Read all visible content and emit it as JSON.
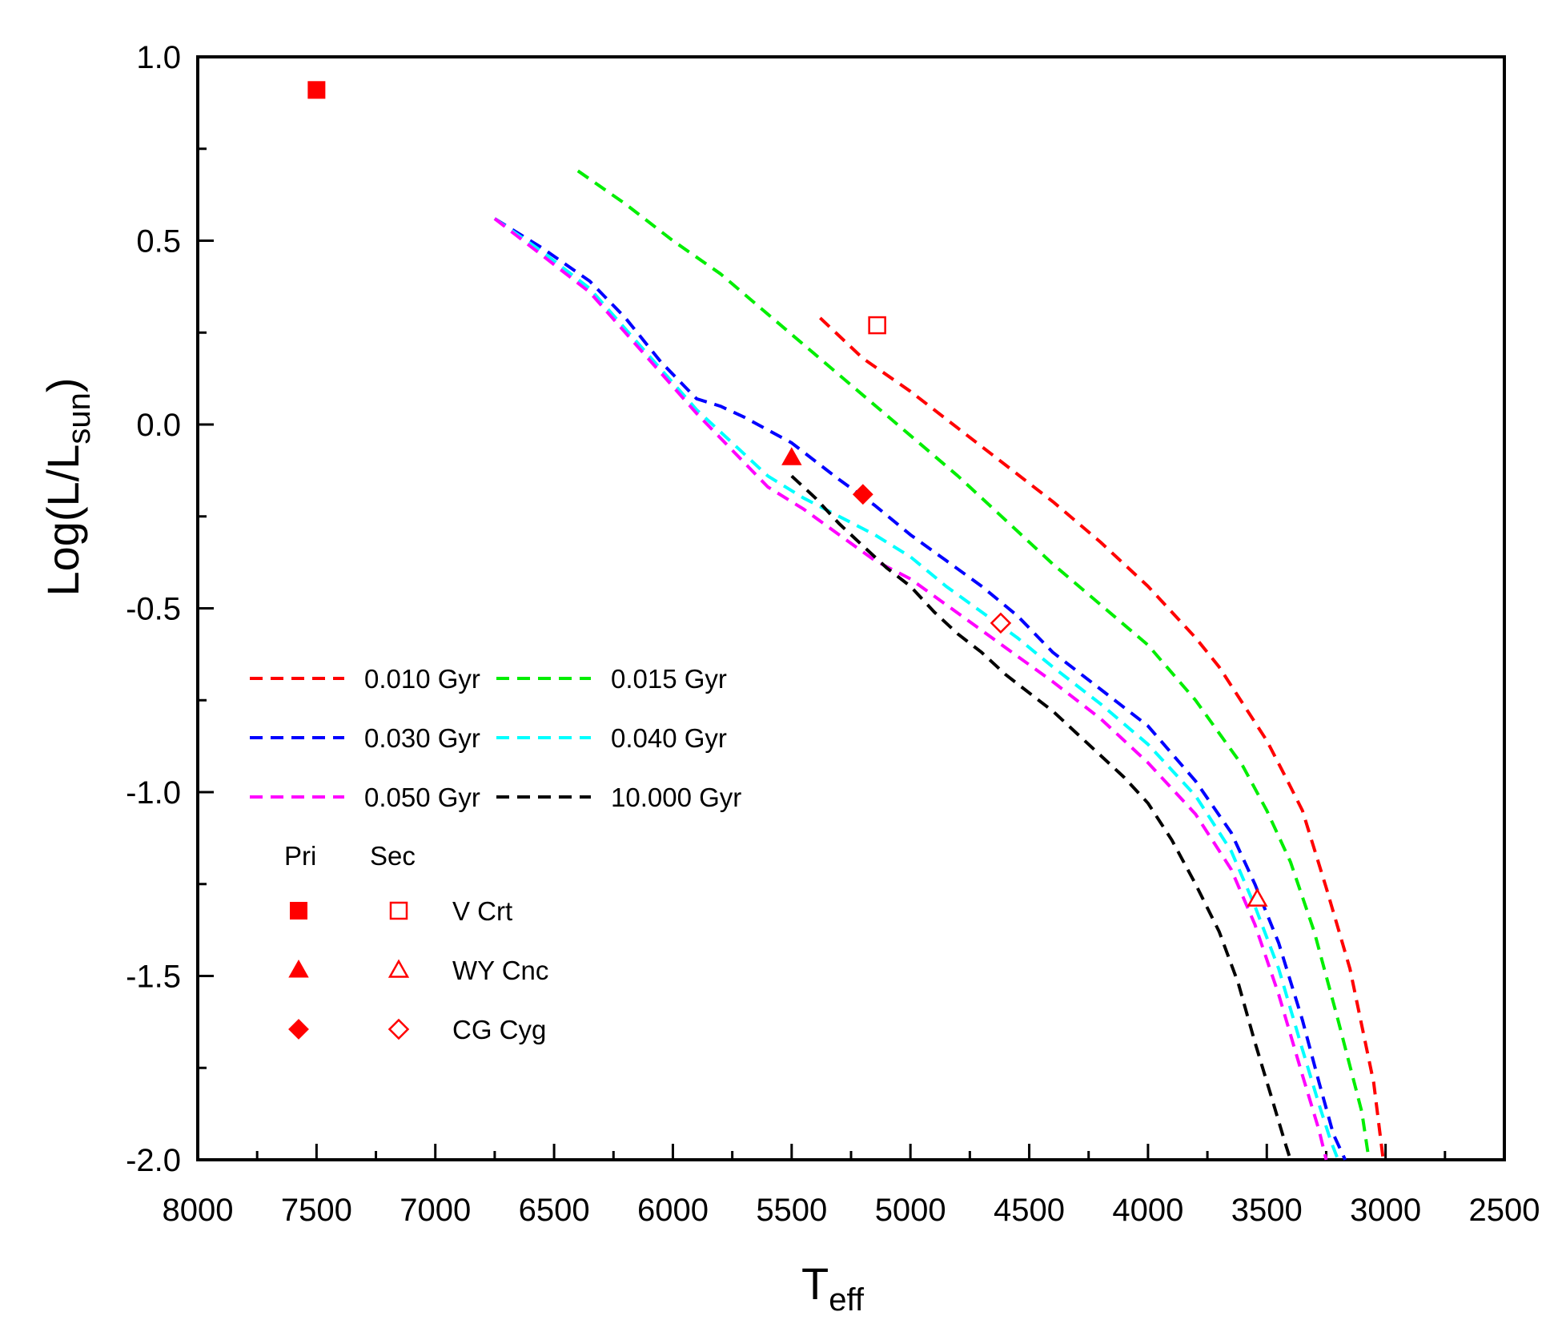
{
  "chart_data": {
    "type": "line",
    "title": "",
    "xlabel": {
      "main": "T",
      "sub": "eff"
    },
    "ylabel": {
      "main": "Log(L/L",
      "sub": "sun",
      "close": ")"
    },
    "xlim": [
      8000,
      2500
    ],
    "ylim": [
      -2.0,
      1.0
    ],
    "xticks": [
      8000,
      7500,
      7000,
      6500,
      6000,
      5500,
      5000,
      4500,
      4000,
      3500,
      3000,
      2500
    ],
    "yticks": [
      1.0,
      0.5,
      0.0,
      -0.5,
      -1.0,
      -1.5,
      -2.0
    ],
    "ytick_labels": [
      "1.0",
      "0.5",
      "0.0",
      "-0.5",
      "-1.0",
      "-1.5",
      "-2.0"
    ],
    "series": [
      {
        "name": "0.010 Gyr",
        "color": "#ff0000",
        "x": [
          5380,
          5200,
          5000,
          4800,
          4600,
          4400,
          4200,
          4000,
          3800,
          3700,
          3600,
          3500,
          3420,
          3350,
          3250,
          3150,
          3050,
          3010
        ],
        "y": [
          0.29,
          0.18,
          0.09,
          -0.01,
          -0.11,
          -0.21,
          -0.32,
          -0.44,
          -0.58,
          -0.66,
          -0.76,
          -0.86,
          -0.96,
          -1.05,
          -1.26,
          -1.48,
          -1.79,
          -2.0
        ]
      },
      {
        "name": "0.015 Gyr",
        "color": "#00ee00",
        "x": [
          6400,
          6200,
          6000,
          5800,
          5600,
          5400,
          5200,
          5000,
          4800,
          4600,
          4400,
          4200,
          4000,
          3800,
          3700,
          3600,
          3500,
          3400,
          3300,
          3200,
          3100,
          3070
        ],
        "y": [
          0.69,
          0.6,
          0.5,
          0.41,
          0.3,
          0.19,
          0.08,
          -0.03,
          -0.14,
          -0.26,
          -0.38,
          -0.49,
          -0.6,
          -0.75,
          -0.84,
          -0.93,
          -1.05,
          -1.19,
          -1.38,
          -1.62,
          -1.87,
          -2.0
        ]
      },
      {
        "name": "0.030 Gyr",
        "color": "#0000ff",
        "x": [
          6750,
          6550,
          6350,
          6200,
          6050,
          5900,
          5800,
          5700,
          5500,
          5400,
          5300,
          5150,
          5000,
          4850,
          4700,
          4550,
          4400,
          4200,
          4000,
          3800,
          3650,
          3550,
          3450,
          3350,
          3280,
          3220,
          3170
        ],
        "y": [
          0.56,
          0.48,
          0.39,
          0.29,
          0.17,
          0.07,
          0.05,
          0.02,
          -0.05,
          -0.1,
          -0.15,
          -0.22,
          -0.3,
          -0.37,
          -0.44,
          -0.52,
          -0.62,
          -0.72,
          -0.82,
          -0.97,
          -1.11,
          -1.25,
          -1.41,
          -1.62,
          -1.79,
          -1.93,
          -2.0
        ]
      },
      {
        "name": "0.040 Gyr",
        "color": "#00ffff",
        "x": [
          6750,
          6550,
          6350,
          6200,
          6050,
          5900,
          5750,
          5600,
          5450,
          5300,
          5150,
          5000,
          4850,
          4700,
          4550,
          4400,
          4200,
          4000,
          3800,
          3650,
          3550,
          3450,
          3350,
          3280,
          3230,
          3200
        ],
        "y": [
          0.56,
          0.47,
          0.37,
          0.26,
          0.15,
          0.04,
          -0.05,
          -0.14,
          -0.2,
          -0.25,
          -0.3,
          -0.36,
          -0.44,
          -0.51,
          -0.58,
          -0.66,
          -0.76,
          -0.87,
          -1.01,
          -1.16,
          -1.31,
          -1.48,
          -1.7,
          -1.85,
          -1.95,
          -2.0
        ]
      },
      {
        "name": "0.050 Gyr",
        "color": "#ff00ff",
        "x": [
          6750,
          6550,
          6350,
          6200,
          6050,
          5900,
          5750,
          5600,
          5450,
          5300,
          5150,
          5000,
          4850,
          4700,
          4550,
          4400,
          4200,
          4000,
          3800,
          3650,
          3550,
          3450,
          3350,
          3280,
          3250
        ],
        "y": [
          0.56,
          0.46,
          0.36,
          0.25,
          0.14,
          0.03,
          -0.07,
          -0.17,
          -0.23,
          -0.3,
          -0.37,
          -0.42,
          -0.49,
          -0.56,
          -0.63,
          -0.7,
          -0.8,
          -0.92,
          -1.06,
          -1.21,
          -1.36,
          -1.55,
          -1.77,
          -1.92,
          -2.0
        ]
      },
      {
        "name": "10.000 Gyr",
        "color": "#000000",
        "x": [
          5500,
          5400,
          5300,
          5200,
          5100,
          5000,
          4900,
          4800,
          4700,
          4600,
          4500,
          4400,
          4300,
          4200,
          4100,
          4000,
          3900,
          3800,
          3700,
          3620,
          3550,
          3480,
          3420,
          3400
        ],
        "y": [
          -0.14,
          -0.2,
          -0.27,
          -0.33,
          -0.39,
          -0.44,
          -0.51,
          -0.57,
          -0.62,
          -0.68,
          -0.73,
          -0.78,
          -0.84,
          -0.9,
          -0.96,
          -1.03,
          -1.13,
          -1.25,
          -1.38,
          -1.52,
          -1.68,
          -1.83,
          -1.96,
          -2.0
        ]
      }
    ],
    "markers": [
      {
        "star": "V Crt",
        "component": "Pri",
        "shape": "square",
        "filled": true,
        "x": 7500,
        "y": 0.91
      },
      {
        "star": "V Crt",
        "component": "Sec",
        "shape": "square",
        "filled": false,
        "x": 5140,
        "y": 0.27
      },
      {
        "star": "WY Cnc",
        "component": "Pri",
        "shape": "triangle",
        "filled": true,
        "x": 5500,
        "y": -0.09
      },
      {
        "star": "WY Cnc",
        "component": "Sec",
        "shape": "triangle",
        "filled": false,
        "x": 3540,
        "y": -1.29
      },
      {
        "star": "CG Cyg",
        "component": "Pri",
        "shape": "diamond",
        "filled": true,
        "x": 5200,
        "y": -0.19
      },
      {
        "star": "CG Cyg",
        "component": "Sec",
        "shape": "diamond",
        "filled": false,
        "x": 4620,
        "y": -0.54
      }
    ],
    "legend": {
      "placement": "lower-left",
      "pri_header": "Pri",
      "sec_header": "Sec",
      "stars": [
        "V Crt",
        "WY Cnc",
        "CG Cyg"
      ]
    },
    "marker_color": "#ff0000"
  }
}
